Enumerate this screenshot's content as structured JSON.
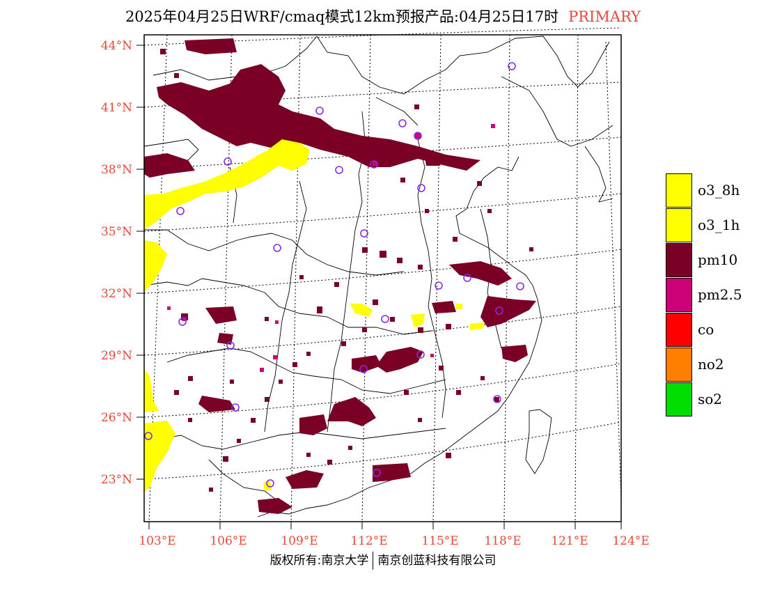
{
  "title": {
    "main": "2025年04月25日WRF/cmaq模式12km预报产品:04月25日17时",
    "tag": "PRIMARY",
    "tag_color": "#e8473a"
  },
  "footer": {
    "left": "版权所有:南京大学",
    "right": "南京创蓝科技有限公司"
  },
  "axes": {
    "lat_labels": [
      "44°N",
      "41°N",
      "38°N",
      "35°N",
      "32°N",
      "29°N",
      "26°N",
      "23°N"
    ],
    "lon_labels": [
      "103°E",
      "106°E",
      "109°E",
      "112°E",
      "115°E",
      "118°E",
      "121°E",
      "124°E"
    ],
    "label_color": "#e8473a"
  },
  "legend": [
    {
      "label": "o3_8h",
      "color": "#ffff00"
    },
    {
      "label": "o3_1h",
      "color": "#ffff00"
    },
    {
      "label": "pm10",
      "color": "#7a0026"
    },
    {
      "label": "pm2.5",
      "color": "#cc0077"
    },
    {
      "label": "co",
      "color": "#ff0000"
    },
    {
      "label": "no2",
      "color": "#ff7f00"
    },
    {
      "label": "so2",
      "color": "#00dd00"
    }
  ],
  "colors": {
    "pm10": "#7a0026",
    "pm25": "#cc0077",
    "o3": "#ffff00",
    "city_marker": "#8a2be2"
  }
}
